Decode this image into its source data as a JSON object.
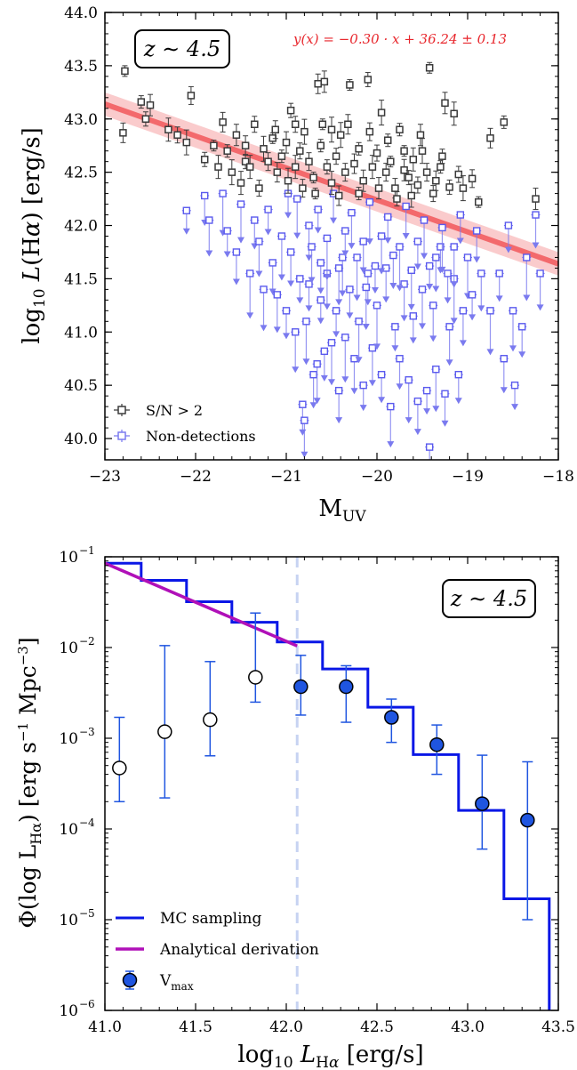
{
  "chart_data": [
    {
      "type": "scatter",
      "panel": "top",
      "title": "",
      "xlabel": "M_UV",
      "ylabel": "log10 L(Hα) [erg/s]",
      "xlim": [
        -23,
        -18
      ],
      "ylim": [
        39.8,
        44.0
      ],
      "xticks": [
        -23,
        -22,
        -21,
        -20,
        -19,
        -18
      ],
      "xtick_labels": [
        "−23",
        "−22",
        "−21",
        "−20",
        "−19",
        "−18"
      ],
      "yticks": [
        40.0,
        40.5,
        41.0,
        41.5,
        42.0,
        42.5,
        43.0,
        43.5,
        44.0
      ],
      "ytick_labels": [
        "40.0",
        "40.5",
        "41.0",
        "41.5",
        "42.0",
        "42.5",
        "43.0",
        "43.5",
        "44.0"
      ],
      "redshift_box": "z ∼ 4.5",
      "fit_label": "y(x) = −0.30 · x + 36.24 ± 0.13",
      "fit": {
        "slope": -0.3,
        "intercept": 36.24,
        "scatter": 0.13,
        "x_range": [
          -23,
          -18
        ]
      },
      "legend": {
        "position": "lower-left",
        "entries": [
          "S/N > 2",
          "Non-detections"
        ]
      },
      "series": [
        {
          "name": "S/N > 2",
          "color": "#3a3a3a",
          "points": [
            [
              -22.78,
              43.45
            ],
            [
              -22.8,
              42.87
            ],
            [
              -22.6,
              43.16
            ],
            [
              -22.5,
              43.13
            ],
            [
              -22.55,
              43.0
            ],
            [
              -22.3,
              42.9
            ],
            [
              -22.2,
              42.85
            ],
            [
              -22.1,
              42.78
            ],
            [
              -22.05,
              43.22
            ],
            [
              -21.8,
              42.75
            ],
            [
              -21.7,
              42.97
            ],
            [
              -21.65,
              42.7
            ],
            [
              -21.55,
              42.85
            ],
            [
              -21.45,
              42.6
            ],
            [
              -21.4,
              42.55
            ],
            [
              -21.35,
              42.95
            ],
            [
              -21.25,
              42.72
            ],
            [
              -21.2,
              42.6
            ],
            [
              -21.15,
              42.82
            ],
            [
              -21.1,
              42.5
            ],
            [
              -21.05,
              42.65
            ],
            [
              -21.0,
              42.78
            ],
            [
              -20.95,
              43.08
            ],
            [
              -20.9,
              42.55
            ],
            [
              -20.85,
              42.7
            ],
            [
              -20.8,
              42.88
            ],
            [
              -20.75,
              42.6
            ],
            [
              -20.7,
              42.45
            ],
            [
              -20.65,
              43.33
            ],
            [
              -20.62,
              42.75
            ],
            [
              -20.58,
              43.35
            ],
            [
              -20.55,
              42.55
            ],
            [
              -20.5,
              42.4
            ],
            [
              -20.45,
              42.65
            ],
            [
              -20.4,
              42.85
            ],
            [
              -20.35,
              42.5
            ],
            [
              -20.3,
              43.32
            ],
            [
              -20.25,
              42.58
            ],
            [
              -20.2,
              42.72
            ],
            [
              -20.15,
              42.42
            ],
            [
              -20.1,
              43.37
            ],
            [
              -20.05,
              42.55
            ],
            [
              -20.0,
              42.68
            ],
            [
              -19.95,
              43.06
            ],
            [
              -19.9,
              42.5
            ],
            [
              -19.85,
              42.6
            ],
            [
              -19.8,
              42.35
            ],
            [
              -19.75,
              42.9
            ],
            [
              -19.7,
              42.52
            ],
            [
              -19.65,
              42.45
            ],
            [
              -19.6,
              42.62
            ],
            [
              -19.55,
              42.38
            ],
            [
              -19.5,
              42.7
            ],
            [
              -19.45,
              42.5
            ],
            [
              -19.42,
              43.48
            ],
            [
              -19.35,
              42.42
            ],
            [
              -19.3,
              42.55
            ],
            [
              -19.25,
              43.15
            ],
            [
              -19.2,
              42.36
            ],
            [
              -19.15,
              43.05
            ],
            [
              -19.1,
              42.48
            ],
            [
              -19.05,
              42.35
            ],
            [
              -18.95,
              42.44
            ],
            [
              -18.88,
              42.22
            ],
            [
              -18.75,
              42.82
            ],
            [
              -18.6,
              42.97
            ],
            [
              -18.25,
              42.25
            ],
            [
              -21.9,
              42.62
            ],
            [
              -21.5,
              42.4
            ],
            [
              -21.3,
              42.35
            ],
            [
              -20.98,
              42.42
            ],
            [
              -20.82,
              42.35
            ],
            [
              -20.68,
              42.3
            ],
            [
              -20.42,
              42.28
            ],
            [
              -20.2,
              42.3
            ],
            [
              -19.98,
              42.35
            ],
            [
              -19.78,
              42.25
            ],
            [
              -19.62,
              42.28
            ],
            [
              -19.38,
              42.3
            ],
            [
              -21.6,
              42.5
            ],
            [
              -21.12,
              42.9
            ],
            [
              -20.6,
              42.95
            ],
            [
              -20.32,
              42.95
            ],
            [
              -19.88,
              42.8
            ],
            [
              -19.52,
              42.85
            ],
            [
              -19.28,
              42.65
            ],
            [
              -21.75,
              42.55
            ],
            [
              -20.9,
              42.95
            ],
            [
              -20.5,
              42.9
            ],
            [
              -20.08,
              42.88
            ],
            [
              -19.7,
              42.7
            ],
            [
              -21.45,
              42.75
            ]
          ]
        },
        {
          "name": "Non-detections",
          "color": "#5a5aee",
          "points": [
            [
              -22.1,
              42.14
            ],
            [
              -21.9,
              42.28
            ],
            [
              -21.85,
              42.05
            ],
            [
              -21.7,
              42.3
            ],
            [
              -21.65,
              41.95
            ],
            [
              -21.55,
              41.75
            ],
            [
              -21.5,
              42.2
            ],
            [
              -21.4,
              41.55
            ],
            [
              -21.35,
              42.05
            ],
            [
              -21.3,
              41.85
            ],
            [
              -21.25,
              41.4
            ],
            [
              -21.2,
              42.15
            ],
            [
              -21.15,
              41.65
            ],
            [
              -21.1,
              41.35
            ],
            [
              -21.05,
              41.9
            ],
            [
              -21.0,
              41.2
            ],
            [
              -20.95,
              41.75
            ],
            [
              -20.9,
              41.0
            ],
            [
              -20.85,
              41.5
            ],
            [
              -20.82,
              40.32
            ],
            [
              -20.8,
              40.17
            ],
            [
              -20.78,
              41.1
            ],
            [
              -20.75,
              41.45
            ],
            [
              -20.7,
              40.6
            ],
            [
              -20.66,
              40.7
            ],
            [
              -20.62,
              41.3
            ],
            [
              -20.58,
              40.82
            ],
            [
              -20.55,
              41.55
            ],
            [
              -20.5,
              40.9
            ],
            [
              -20.45,
              41.2
            ],
            [
              -20.42,
              40.45
            ],
            [
              -20.38,
              41.7
            ],
            [
              -20.35,
              40.95
            ],
            [
              -20.3,
              41.4
            ],
            [
              -20.25,
              40.75
            ],
            [
              -20.2,
              41.1
            ],
            [
              -20.15,
              40.5
            ],
            [
              -20.1,
              41.55
            ],
            [
              -20.05,
              40.85
            ],
            [
              -20.0,
              41.25
            ],
            [
              -19.95,
              40.6
            ],
            [
              -19.9,
              41.6
            ],
            [
              -19.85,
              40.3
            ],
            [
              -19.8,
              41.05
            ],
            [
              -19.75,
              40.75
            ],
            [
              -19.7,
              41.45
            ],
            [
              -19.65,
              40.55
            ],
            [
              -19.6,
              41.15
            ],
            [
              -19.55,
              40.35
            ],
            [
              -19.5,
              41.4
            ],
            [
              -19.45,
              40.45
            ],
            [
              -19.42,
              39.92
            ],
            [
              -19.38,
              41.25
            ],
            [
              -19.35,
              40.65
            ],
            [
              -19.3,
              41.8
            ],
            [
              -19.25,
              40.42
            ],
            [
              -19.2,
              41.05
            ],
            [
              -19.15,
              41.5
            ],
            [
              -19.1,
              40.6
            ],
            [
              -19.05,
              41.2
            ],
            [
              -19.0,
              41.7
            ],
            [
              -18.95,
              41.35
            ],
            [
              -18.9,
              41.95
            ],
            [
              -18.85,
              41.55
            ],
            [
              -18.75,
              41.2
            ],
            [
              -18.65,
              41.55
            ],
            [
              -18.6,
              40.75
            ],
            [
              -18.5,
              41.2
            ],
            [
              -18.48,
              40.5
            ],
            [
              -18.4,
              41.05
            ],
            [
              -18.2,
              41.55
            ],
            [
              -18.35,
              41.7
            ],
            [
              -18.55,
              42.0
            ],
            [
              -18.25,
              42.1
            ],
            [
              -20.88,
              42.25
            ],
            [
              -20.65,
              42.15
            ],
            [
              -20.48,
              42.3
            ],
            [
              -20.28,
              42.12
            ],
            [
              -20.08,
              42.22
            ],
            [
              -19.88,
              42.08
            ],
            [
              -19.68,
              42.18
            ],
            [
              -19.48,
              42.05
            ],
            [
              -19.28,
              41.98
            ],
            [
              -19.08,
              42.1
            ],
            [
              -20.75,
              42.0
            ],
            [
              -20.55,
              41.88
            ],
            [
              -20.35,
              41.95
            ],
            [
              -20.15,
              41.85
            ],
            [
              -19.95,
              41.9
            ],
            [
              -19.75,
              41.8
            ],
            [
              -19.55,
              41.85
            ],
            [
              -19.35,
              41.7
            ],
            [
              -19.15,
              41.8
            ],
            [
              -20.98,
              42.3
            ],
            [
              -20.62,
              41.65
            ],
            [
              -20.42,
              41.6
            ],
            [
              -20.22,
              41.7
            ],
            [
              -20.02,
              41.62
            ],
            [
              -19.82,
              41.72
            ],
            [
              -19.62,
              41.58
            ],
            [
              -19.42,
              41.62
            ],
            [
              -19.22,
              41.55
            ],
            [
              -20.72,
              41.8
            ],
            [
              -20.12,
              41.42
            ]
          ]
        }
      ]
    },
    {
      "type": "line",
      "panel": "bottom",
      "title": "",
      "xlabel": "log10 L_Hα [erg/s]",
      "ylabel": "Φ(log L_Hα) [erg s⁻¹ Mpc⁻³]",
      "xlim": [
        41.0,
        43.5
      ],
      "ylim_log10": [
        -6,
        -1
      ],
      "yscale": "log",
      "xticks": [
        41.0,
        41.5,
        42.0,
        42.5,
        43.0,
        43.5
      ],
      "xtick_labels": [
        "41.0",
        "41.5",
        "42.0",
        "42.5",
        "43.0",
        "43.5"
      ],
      "ytick_exponents": [
        -6,
        -5,
        -4,
        -3,
        -2,
        -1
      ],
      "redshift_box": "z ∼ 4.5",
      "completeness_limit": 42.06,
      "legend": {
        "position": "lower-left",
        "entries": [
          "MC sampling",
          "Analytical derivation",
          "V_max"
        ]
      },
      "mc_sampling": {
        "name": "MC sampling",
        "color": "#0a17e6",
        "bin_edges": [
          41.0,
          41.2,
          41.45,
          41.7,
          41.95,
          42.2,
          42.45,
          42.7,
          42.95,
          43.2,
          43.45
        ],
        "values": [
          0.085,
          0.055,
          0.032,
          0.019,
          0.0115,
          0.0058,
          0.0022,
          0.00066,
          0.00016,
          1.7e-05
        ]
      },
      "analytical": {
        "name": "Analytical derivation",
        "color": "#b010b8",
        "x": [
          41.0,
          42.06
        ],
        "y": [
          0.085,
          0.0104
        ]
      },
      "vmax": {
        "name": "V_max",
        "color": "#1f55e0",
        "points": [
          {
            "x": 41.08,
            "y": 0.00047,
            "lo": 0.0002,
            "hi": 0.0017,
            "filled": false
          },
          {
            "x": 41.33,
            "y": 0.00118,
            "lo": 0.00022,
            "hi": 0.0105,
            "filled": false
          },
          {
            "x": 41.58,
            "y": 0.0016,
            "lo": 0.00064,
            "hi": 0.007,
            "filled": false
          },
          {
            "x": 41.83,
            "y": 0.0047,
            "lo": 0.0025,
            "hi": 0.024,
            "filled": false
          },
          {
            "x": 42.08,
            "y": 0.0037,
            "lo": 0.0018,
            "hi": 0.0082,
            "filled": true
          },
          {
            "x": 42.33,
            "y": 0.0037,
            "lo": 0.0015,
            "hi": 0.0063,
            "filled": true
          },
          {
            "x": 42.58,
            "y": 0.0017,
            "lo": 0.0009,
            "hi": 0.0027,
            "filled": true
          },
          {
            "x": 42.83,
            "y": 0.00085,
            "lo": 0.0004,
            "hi": 0.0014,
            "filled": true
          },
          {
            "x": 43.08,
            "y": 0.00019,
            "lo": 6e-05,
            "hi": 0.00065,
            "filled": true
          },
          {
            "x": 43.33,
            "y": 0.000125,
            "lo": 1e-05,
            "hi": 0.00055,
            "filled": true
          }
        ]
      }
    }
  ]
}
